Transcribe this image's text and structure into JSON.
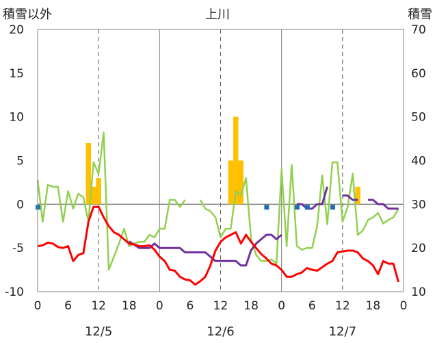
{
  "chart_data": {
    "type": "bar+line",
    "title": "上川",
    "left_axis_label": "積雪以外",
    "right_axis_label": "積雪",
    "left_ylim": [
      -10,
      20
    ],
    "left_yticks": [
      20,
      15,
      10,
      5,
      0,
      -5,
      -10
    ],
    "right_ylim": [
      10,
      70
    ],
    "right_yticks": [
      70,
      60,
      50,
      40,
      30,
      20,
      10
    ],
    "x_hours_range": [
      0,
      72
    ],
    "x_tick_labels": [
      "0",
      "6",
      "12",
      "18",
      "0",
      "6",
      "12",
      "18",
      "0",
      "6",
      "12",
      "18",
      "0"
    ],
    "date_labels": [
      "12/5",
      "12/6",
      "12/7"
    ],
    "colors": {
      "snowfall": "#ffc000",
      "temperature": "#ff0000",
      "wind": "#92d050",
      "snow_depth": "#7030a0",
      "precip": "#1f6fb5"
    },
    "snowfall_bars": [
      {
        "x": 10,
        "y": 7
      },
      {
        "x": 11,
        "y": 2
      },
      {
        "x": 12,
        "y": 3
      },
      {
        "x": 38,
        "y": 5
      },
      {
        "x": 39,
        "y": 10
      },
      {
        "x": 40,
        "y": 5
      },
      {
        "x": 63,
        "y": 2
      }
    ],
    "temperature_series": [
      [
        0,
        -4.8
      ],
      [
        1,
        -4.7
      ],
      [
        2,
        -4.4
      ],
      [
        3,
        -4.5
      ],
      [
        4,
        -4.9
      ],
      [
        5,
        -5.0
      ],
      [
        6,
        -4.8
      ],
      [
        7,
        -6.5
      ],
      [
        8,
        -5.8
      ],
      [
        9,
        -5.6
      ],
      [
        10,
        -2.0
      ],
      [
        11,
        -0.3
      ],
      [
        12,
        -0.3
      ],
      [
        13,
        -1.5
      ],
      [
        14,
        -2.5
      ],
      [
        15,
        -3.2
      ],
      [
        16,
        -3.5
      ],
      [
        17,
        -4.0
      ],
      [
        18,
        -4.5
      ],
      [
        19,
        -4.6
      ],
      [
        20,
        -4.8
      ],
      [
        21,
        -4.8
      ],
      [
        22,
        -4.7
      ],
      [
        23,
        -5.2
      ],
      [
        24,
        -6.0
      ],
      [
        25,
        -6.5
      ],
      [
        26,
        -7.5
      ],
      [
        27,
        -7.6
      ],
      [
        28,
        -8.3
      ],
      [
        29,
        -8.6
      ],
      [
        30,
        -8.7
      ],
      [
        31,
        -9.2
      ],
      [
        32,
        -8.8
      ],
      [
        33,
        -8.3
      ],
      [
        34,
        -7.0
      ],
      [
        35,
        -5.3
      ],
      [
        36,
        -4.3
      ],
      [
        37,
        -3.8
      ],
      [
        38,
        -3.5
      ],
      [
        39,
        -3.2
      ],
      [
        40,
        -4.5
      ],
      [
        41,
        -3.5
      ],
      [
        42,
        -4.3
      ],
      [
        43,
        -5.0
      ],
      [
        44,
        -5.7
      ],
      [
        45,
        -6.2
      ],
      [
        46,
        -6.8
      ],
      [
        47,
        -7.0
      ],
      [
        48,
        -7.5
      ],
      [
        49,
        -8.3
      ],
      [
        50,
        -8.3
      ],
      [
        51,
        -8.0
      ],
      [
        52,
        -7.8
      ],
      [
        53,
        -7.3
      ],
      [
        54,
        -7.5
      ],
      [
        55,
        -7.6
      ],
      [
        56,
        -7.2
      ],
      [
        57,
        -6.8
      ],
      [
        58,
        -6.5
      ],
      [
        59,
        -5.5
      ],
      [
        60,
        -5.4
      ],
      [
        61,
        -5.3
      ],
      [
        62,
        -5.3
      ],
      [
        63,
        -5.5
      ],
      [
        64,
        -6.2
      ],
      [
        65,
        -6.5
      ],
      [
        66,
        -7.0
      ],
      [
        67,
        -8.0
      ],
      [
        68,
        -6.5
      ],
      [
        69,
        -6.8
      ],
      [
        70,
        -6.8
      ],
      [
        71,
        -8.9
      ]
    ],
    "wind_series": [
      [
        [
          0,
          2.8
        ],
        [
          1,
          -2.0
        ],
        [
          2,
          2.2
        ],
        [
          3,
          2.0
        ],
        [
          4,
          2.0
        ],
        [
          5,
          -2.0
        ],
        [
          6,
          1.5
        ],
        [
          7,
          -0.5
        ],
        [
          8,
          1.2
        ],
        [
          9,
          0.8
        ],
        [
          10,
          -2.0
        ],
        [
          11,
          4.8
        ],
        [
          12,
          3.5
        ],
        [
          13,
          8.2
        ],
        [
          14,
          -7.5
        ],
        [
          15,
          -6.0
        ],
        [
          16,
          -4.5
        ],
        [
          17,
          -2.8
        ],
        [
          18,
          -4.8
        ],
        [
          19,
          -4.5
        ],
        [
          20,
          -4.3
        ],
        [
          21,
          -4.3
        ],
        [
          22,
          -3.5
        ],
        [
          23,
          -3.8
        ],
        [
          24,
          -2.8
        ],
        [
          25,
          -2.8
        ],
        [
          26,
          0.5
        ],
        [
          27,
          0.5
        ],
        [
          28,
          -0.3
        ],
        [
          29,
          0.5
        ]
      ],
      [
        [
          32,
          0.5
        ],
        [
          33,
          -0.5
        ],
        [
          34,
          -0.8
        ],
        [
          35,
          -1.5
        ],
        [
          36,
          -3.8
        ],
        [
          37,
          -2.8
        ],
        [
          38,
          -2.8
        ],
        [
          39,
          1.5
        ],
        [
          40,
          1.0
        ],
        [
          41,
          3.0
        ],
        [
          42,
          -4.0
        ],
        [
          43,
          -5.8
        ],
        [
          44,
          -6.5
        ],
        [
          45,
          -6.5
        ],
        [
          46,
          -6.3
        ],
        [
          47,
          -6.8
        ],
        [
          48,
          4.0
        ],
        [
          49,
          -4.8
        ],
        [
          50,
          4.5
        ],
        [
          51,
          -4.8
        ],
        [
          52,
          -5.2
        ],
        [
          53,
          -5.0
        ],
        [
          54,
          -5.0
        ],
        [
          55,
          -2.5
        ],
        [
          56,
          3.3
        ],
        [
          57,
          -2.3
        ],
        [
          58,
          4.8
        ],
        [
          59,
          4.8
        ],
        [
          60,
          -2.0
        ],
        [
          61,
          -0.3
        ],
        [
          62,
          3.5
        ],
        [
          63,
          -3.5
        ],
        [
          64,
          -3.0
        ],
        [
          65,
          -1.8
        ],
        [
          66,
          -1.5
        ],
        [
          67,
          -1.0
        ],
        [
          68,
          -2.2
        ],
        [
          69,
          -1.8
        ],
        [
          70,
          -1.5
        ],
        [
          71,
          -0.5
        ]
      ]
    ],
    "snow_depth_series": [
      [
        [
          18,
          21.5
        ],
        [
          20,
          20.0
        ],
        [
          22,
          20.0
        ],
        [
          23,
          21.0
        ],
        [
          24,
          20.0
        ],
        [
          25,
          20.0
        ],
        [
          26,
          20.0
        ],
        [
          27,
          20.0
        ],
        [
          28,
          20.0
        ],
        [
          29,
          19.0
        ],
        [
          30,
          19.0
        ],
        [
          31,
          19.0
        ],
        [
          32,
          19.0
        ],
        [
          33,
          19.0
        ],
        [
          34,
          18.0
        ],
        [
          35,
          17.0
        ],
        [
          36,
          17.0
        ],
        [
          37,
          17.0
        ],
        [
          38,
          17.0
        ],
        [
          39,
          17.0
        ],
        [
          40,
          16.0
        ],
        [
          41,
          16.0
        ],
        [
          42,
          19.5
        ],
        [
          43,
          21.0
        ],
        [
          44,
          22.0
        ],
        [
          45,
          23.0
        ],
        [
          46,
          23.0
        ],
        [
          47,
          22.0
        ],
        [
          48,
          23.0
        ]
      ],
      [
        [
          51,
          30.0
        ],
        [
          52,
          30.0
        ],
        [
          53,
          29.0
        ],
        [
          54,
          29.0
        ],
        [
          55,
          30.0
        ],
        [
          56,
          30.0
        ],
        [
          57,
          34.0
        ]
      ],
      [
        [
          60,
          32.0
        ],
        [
          61,
          32.0
        ],
        [
          62,
          31.0
        ],
        [
          63,
          31.0
        ]
      ],
      [
        [
          65,
          31.0
        ],
        [
          66,
          31.0
        ],
        [
          67,
          30.0
        ],
        [
          68,
          30.0
        ],
        [
          69,
          29.0
        ],
        [
          70,
          29.0
        ],
        [
          71,
          29.0
        ]
      ]
    ],
    "precip_points": [
      [
        0,
        -0.3
      ],
      [
        45,
        -0.3
      ],
      [
        51,
        -0.3
      ],
      [
        53,
        -0.3
      ],
      [
        58,
        -0.3
      ]
    ]
  }
}
